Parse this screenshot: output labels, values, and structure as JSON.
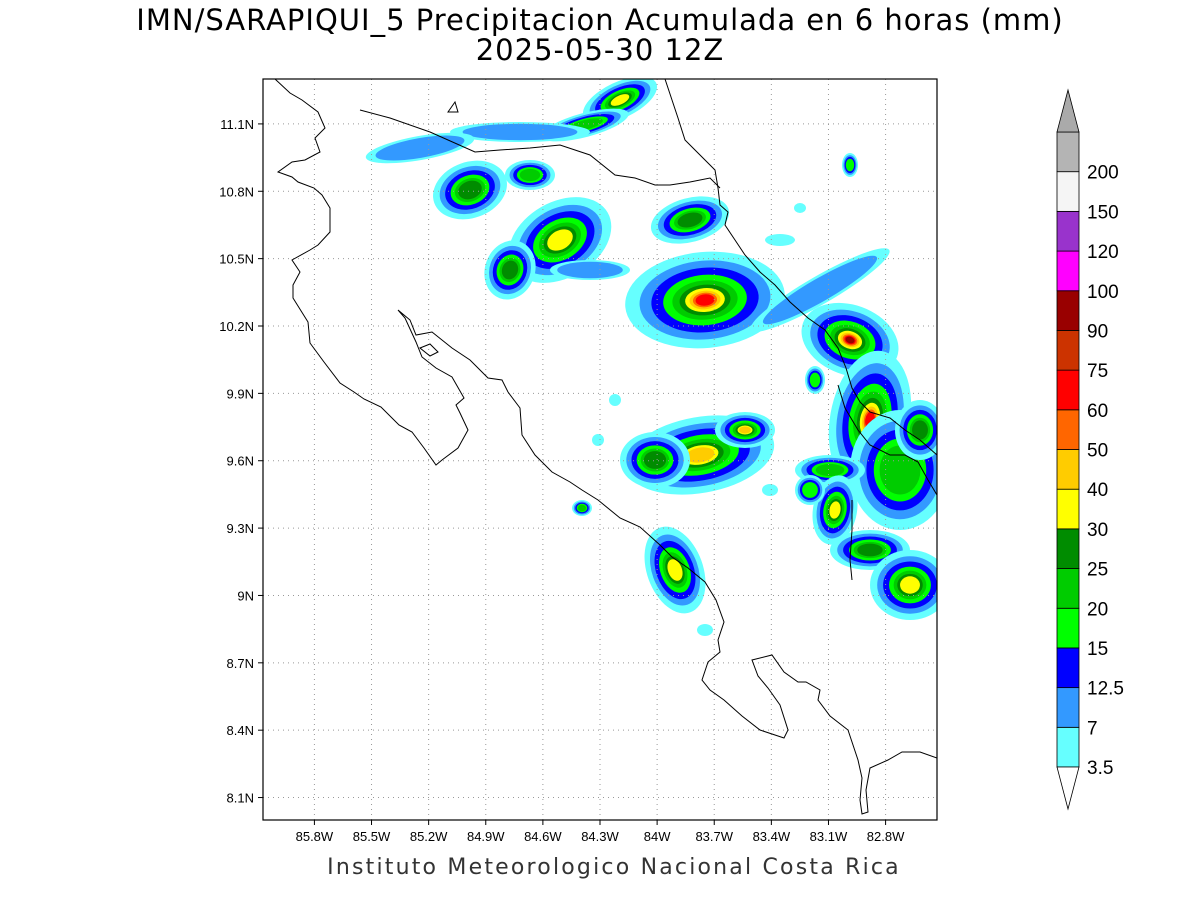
{
  "title": {
    "line1": "IMN/SARAPIQUI_5 Precipitacion Acumulada en 6 horas (mm)",
    "line2": "2025-05-30 12Z"
  },
  "footer": "Instituto Meteorologico Nacional Costa Rica",
  "map": {
    "lon_range": [
      -86.07,
      -82.53
    ],
    "lat_range": [
      8.0,
      11.3
    ],
    "lon_ticks": [
      {
        "value": -85.8,
        "label": "85.8W"
      },
      {
        "value": -85.5,
        "label": "85.5W"
      },
      {
        "value": -85.2,
        "label": "85.2W"
      },
      {
        "value": -84.9,
        "label": "84.9W"
      },
      {
        "value": -84.6,
        "label": "84.6W"
      },
      {
        "value": -84.3,
        "label": "84.3W"
      },
      {
        "value": -84.0,
        "label": "84W"
      },
      {
        "value": -83.7,
        "label": "83.7W"
      },
      {
        "value": -83.4,
        "label": "83.4W"
      },
      {
        "value": -83.1,
        "label": "83.1W"
      },
      {
        "value": -82.8,
        "label": "82.8W"
      }
    ],
    "lat_ticks": [
      {
        "value": 11.1,
        "label": "11.1N"
      },
      {
        "value": 10.8,
        "label": "10.8N"
      },
      {
        "value": 10.5,
        "label": "10.5N"
      },
      {
        "value": 10.2,
        "label": "10.2N"
      },
      {
        "value": 9.9,
        "label": "9.9N"
      },
      {
        "value": 9.6,
        "label": "9.6N"
      },
      {
        "value": 9.3,
        "label": "9.3N"
      },
      {
        "value": 9.0,
        "label": "9N"
      },
      {
        "value": 8.7,
        "label": "8.7N"
      },
      {
        "value": 8.4,
        "label": "8.4N"
      },
      {
        "value": 8.1,
        "label": "8.1N"
      }
    ],
    "grid": true
  },
  "colorbar": {
    "levels": [
      {
        "label": "3.5",
        "color": "#66ffff"
      },
      {
        "label": "7",
        "color": "#3399ff"
      },
      {
        "label": "12.5",
        "color": "#0000ff"
      },
      {
        "label": "15",
        "color": "#00ff00"
      },
      {
        "label": "20",
        "color": "#00cc00"
      },
      {
        "label": "25",
        "color": "#008c00"
      },
      {
        "label": "30",
        "color": "#ffff00"
      },
      {
        "label": "40",
        "color": "#ffcc00"
      },
      {
        "label": "50",
        "color": "#ff6600"
      },
      {
        "label": "60",
        "color": "#ff0000"
      },
      {
        "label": "75",
        "color": "#cc3300"
      },
      {
        "label": "90",
        "color": "#990000"
      },
      {
        "label": "100",
        "color": "#ff00ff"
      },
      {
        "label": "120",
        "color": "#9933cc"
      },
      {
        "label": "150",
        "color": "#f5f5f5"
      },
      {
        "label": "200",
        "color": "#b4b4b4"
      }
    ],
    "below_color": "#ffffff",
    "above_color": "#aaaaaa"
  }
}
